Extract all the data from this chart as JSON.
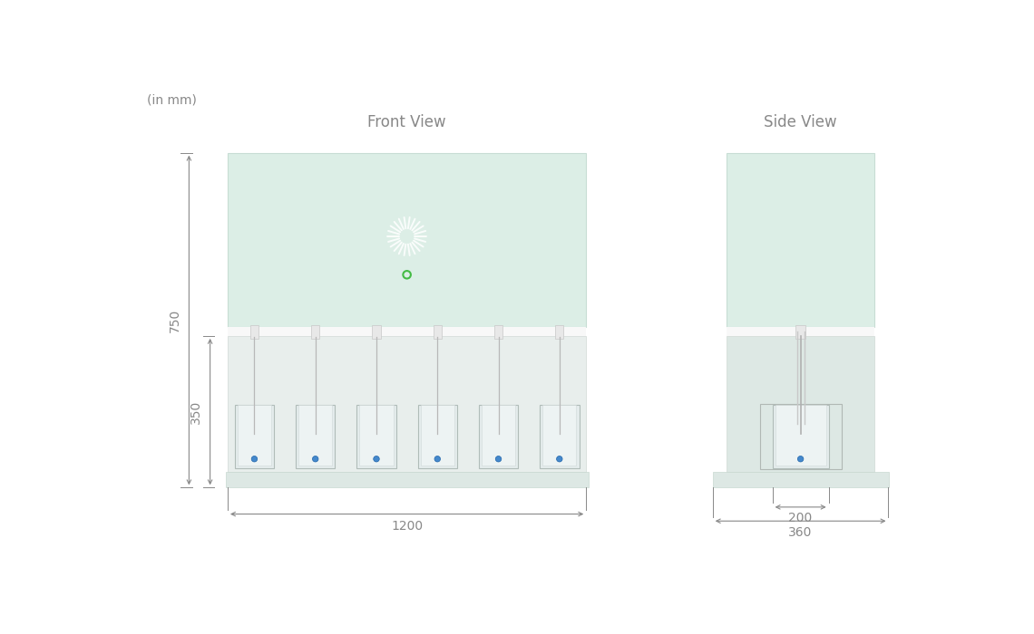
{
  "bg_color": "#ffffff",
  "unit_label": "(in mm)",
  "front_view_label": "Front View",
  "side_view_label": "Side View",
  "label_color": "#888888",
  "top_panel_color": "#dceee6",
  "top_panel_edge": "#c8ddd4",
  "bot_panel_color": "#e8eeec",
  "bot_panel_edge": "#d0d8d4",
  "base_color": "#dde8e4",
  "base_edge": "#c8d8d0",
  "vessel_face": "#e4ecec",
  "vessel_edge": "#b0bcb8",
  "rod_color": "#c0c8c4",
  "sep_color": "#f4f4f4",
  "dim_color": "#888888",
  "logo_color": "#ffffff",
  "led_color": "#44bb44",
  "blue_pellet": "#4488cc",
  "dim_750_label": "750",
  "dim_350_label": "350",
  "dim_1200_label": "1200",
  "dim_200_label": "200",
  "dim_360_label": "360"
}
